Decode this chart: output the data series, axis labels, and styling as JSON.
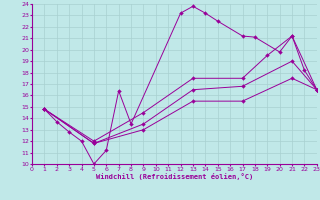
{
  "xlabel": "Windchill (Refroidissement éolien,°C)",
  "xlim": [
    0,
    23
  ],
  "ylim": [
    10,
    24
  ],
  "xticks": [
    0,
    1,
    2,
    3,
    4,
    5,
    6,
    7,
    8,
    9,
    10,
    11,
    12,
    13,
    14,
    15,
    16,
    17,
    18,
    19,
    20,
    21,
    22,
    23
  ],
  "yticks": [
    10,
    11,
    12,
    13,
    14,
    15,
    16,
    17,
    18,
    19,
    20,
    21,
    22,
    23,
    24
  ],
  "bg_color": "#c0e8e8",
  "line_color": "#990099",
  "grid_color": "#a8d0d0",
  "lines": [
    {
      "x": [
        1,
        2,
        3,
        4,
        5,
        6,
        7,
        8,
        12,
        13,
        14,
        15,
        17,
        18,
        20,
        21,
        22,
        23
      ],
      "y": [
        14.8,
        13.7,
        12.8,
        12.0,
        10.0,
        11.2,
        16.4,
        13.5,
        23.2,
        23.8,
        23.2,
        22.5,
        21.2,
        21.1,
        19.8,
        21.2,
        18.2,
        16.5
      ]
    },
    {
      "x": [
        1,
        5,
        9,
        13,
        17,
        19,
        21,
        23
      ],
      "y": [
        14.8,
        12.0,
        14.5,
        17.5,
        17.5,
        19.5,
        21.2,
        16.5
      ]
    },
    {
      "x": [
        1,
        5,
        9,
        13,
        17,
        21,
        23
      ],
      "y": [
        14.8,
        11.8,
        13.5,
        16.5,
        16.8,
        19.0,
        16.5
      ]
    },
    {
      "x": [
        1,
        5,
        9,
        13,
        17,
        21,
        23
      ],
      "y": [
        14.8,
        11.8,
        13.0,
        15.5,
        15.5,
        17.5,
        16.5
      ]
    }
  ]
}
